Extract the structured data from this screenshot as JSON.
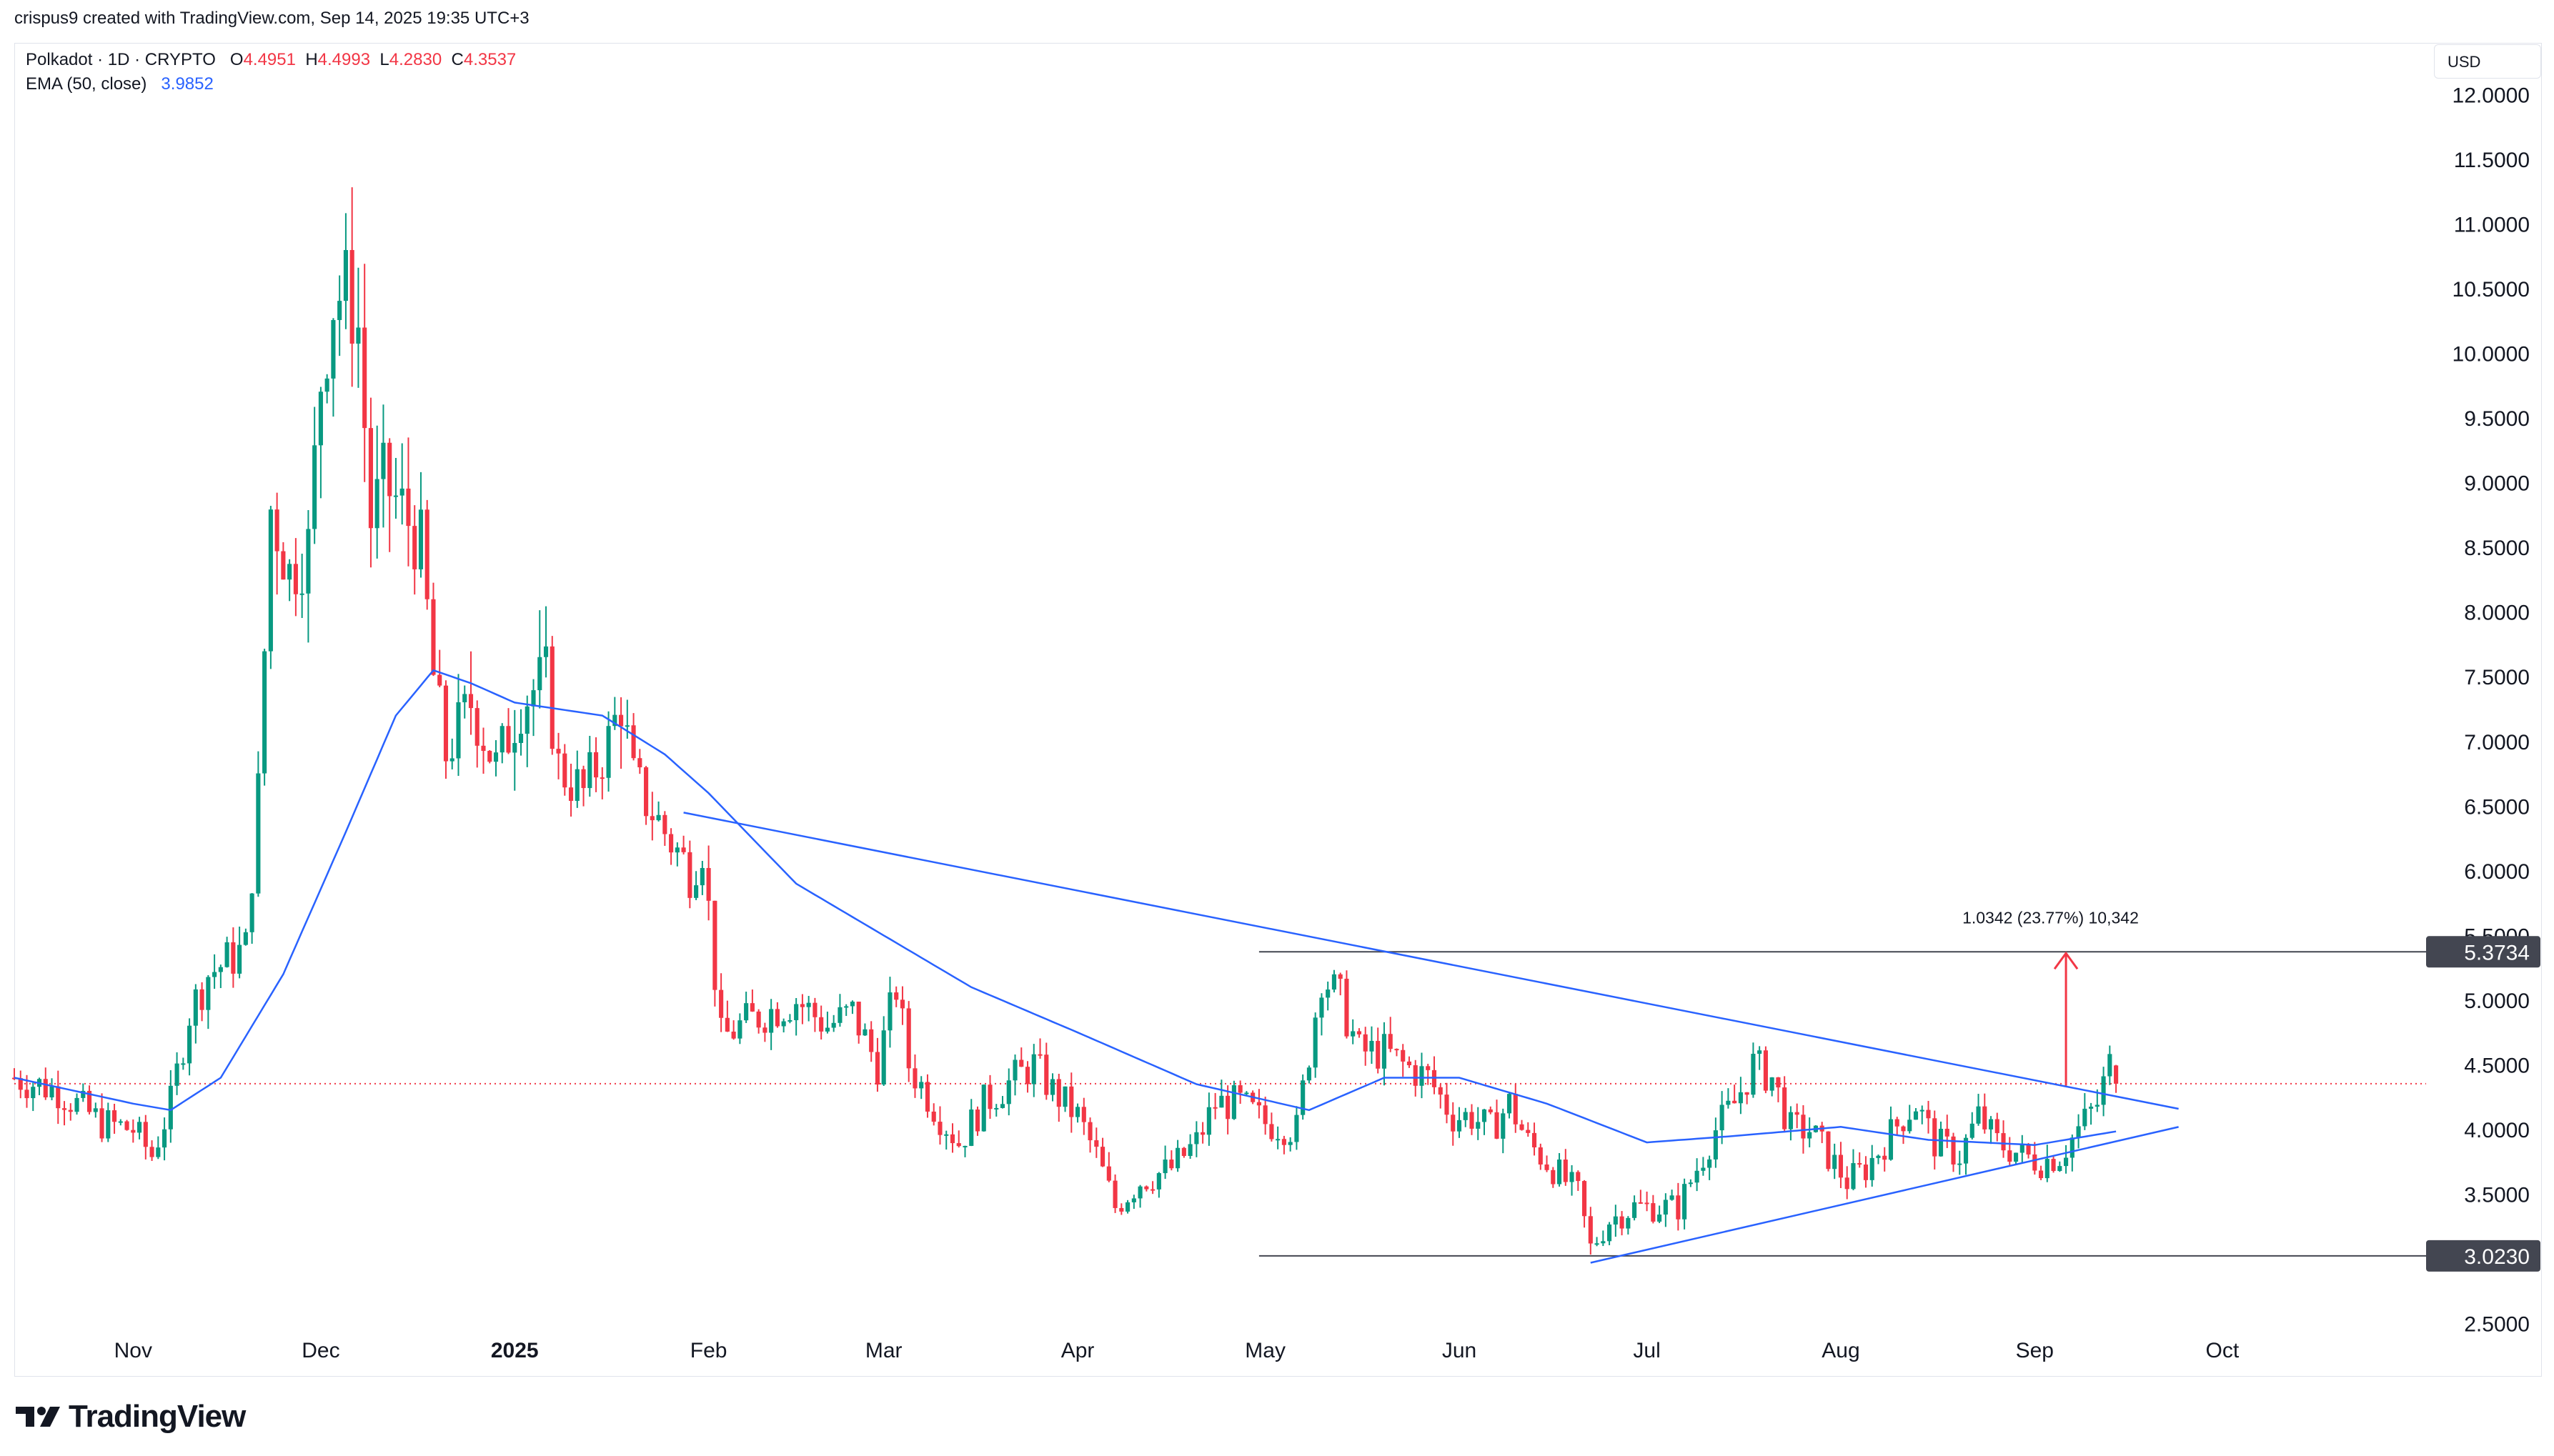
{
  "header": {
    "attribution": "crispus9 created with TradingView.com, Sep 14, 2025 19:35 UTC+3"
  },
  "legend": {
    "symbol": "Polkadot · 1D · CRYPTO",
    "o_label": "O",
    "o": "4.4951",
    "h_label": "H",
    "h": "4.4993",
    "l_label": "L",
    "l": "4.2830",
    "c_label": "C",
    "c": "4.3537",
    "ema_label": "EMA (50, close)",
    "ema_value": "3.9852"
  },
  "currency": "USD",
  "brand": "TradingView",
  "colors": {
    "up": "#089981",
    "down": "#f23645",
    "ema": "#2962ff",
    "trendline": "#2962ff",
    "level": "#434651",
    "arrow": "#f23645",
    "current_price_line": "#f23645"
  },
  "chart_data": {
    "type": "candlestick",
    "symbol": "Polkadot",
    "interval": "1D",
    "y_axis": {
      "ticks": [
        "12.0000",
        "11.5000",
        "11.0000",
        "10.5000",
        "10.0000",
        "9.5000",
        "9.0000",
        "8.5000",
        "8.0000",
        "7.5000",
        "7.0000",
        "6.5000",
        "6.0000",
        "5.5000",
        "5.0000",
        "4.5000",
        "4.0000",
        "3.5000",
        "2.5000"
      ],
      "range": [
        2.1,
        12.4
      ],
      "position": "right"
    },
    "x_axis": {
      "ticks": [
        {
          "label": "Nov",
          "date": "2024-11-01",
          "bold": false
        },
        {
          "label": "Dec",
          "date": "2024-12-01",
          "bold": false
        },
        {
          "label": "2025",
          "date": "2025-01-01",
          "bold": true
        },
        {
          "label": "Feb",
          "date": "2025-02-01",
          "bold": false
        },
        {
          "label": "Mar",
          "date": "2025-03-01",
          "bold": false
        },
        {
          "label": "Apr",
          "date": "2025-04-01",
          "bold": false
        },
        {
          "label": "May",
          "date": "2025-05-01",
          "bold": false
        },
        {
          "label": "Jun",
          "date": "2025-06-01",
          "bold": false
        },
        {
          "label": "Jul",
          "date": "2025-07-01",
          "bold": false
        },
        {
          "label": "Aug",
          "date": "2025-08-01",
          "bold": false
        },
        {
          "label": "Sep",
          "date": "2025-09-01",
          "bold": false
        },
        {
          "label": "Oct",
          "date": "2025-10-01",
          "bold": false
        }
      ],
      "range": [
        "2024-10-13",
        "2025-11-02"
      ]
    },
    "close_anchors": [
      [
        "2024-10-13",
        4.4
      ],
      [
        "2024-10-20",
        4.3
      ],
      [
        "2024-10-27",
        4.05
      ],
      [
        "2024-11-01",
        4.0
      ],
      [
        "2024-11-04",
        3.8
      ],
      [
        "2024-11-07",
        4.2
      ],
      [
        "2024-11-10",
        4.9
      ],
      [
        "2024-11-13",
        5.2
      ],
      [
        "2024-11-16",
        5.3
      ],
      [
        "2024-11-19",
        5.4
      ],
      [
        "2024-11-21",
        6.6
      ],
      [
        "2024-11-23",
        8.8
      ],
      [
        "2024-11-26",
        8.3
      ],
      [
        "2024-11-29",
        8.5
      ],
      [
        "2024-12-01",
        9.8
      ],
      [
        "2024-12-03",
        10.4
      ],
      [
        "2024-12-05",
        10.5
      ],
      [
        "2024-12-07",
        10.2
      ],
      [
        "2024-12-09",
        8.7
      ],
      [
        "2024-12-11",
        9.0
      ],
      [
        "2024-12-14",
        8.8
      ],
      [
        "2024-12-17",
        8.5
      ],
      [
        "2024-12-19",
        7.5
      ],
      [
        "2024-12-21",
        6.9
      ],
      [
        "2024-12-25",
        7.3
      ],
      [
        "2024-12-29",
        6.8
      ],
      [
        "2025-01-02",
        7.3
      ],
      [
        "2025-01-06",
        7.5
      ],
      [
        "2025-01-08",
        6.8
      ],
      [
        "2025-01-12",
        6.6
      ],
      [
        "2025-01-16",
        7.0
      ],
      [
        "2025-01-18",
        7.3
      ],
      [
        "2025-01-20",
        6.7
      ],
      [
        "2025-01-25",
        6.3
      ],
      [
        "2025-01-29",
        6.0
      ],
      [
        "2025-01-31",
        6.2
      ],
      [
        "2025-02-03",
        4.7
      ],
      [
        "2025-02-06",
        4.8
      ],
      [
        "2025-02-10",
        4.9
      ],
      [
        "2025-02-15",
        5.0
      ],
      [
        "2025-02-20",
        4.8
      ],
      [
        "2025-02-24",
        4.9
      ],
      [
        "2025-02-28",
        4.5
      ],
      [
        "2025-03-03",
        5.1
      ],
      [
        "2025-03-05",
        4.5
      ],
      [
        "2025-03-10",
        4.1
      ],
      [
        "2025-03-13",
        3.9
      ],
      [
        "2025-03-17",
        4.2
      ],
      [
        "2025-03-22",
        4.4
      ],
      [
        "2025-03-25",
        4.5
      ],
      [
        "2025-03-28",
        4.3
      ],
      [
        "2025-04-01",
        4.1
      ],
      [
        "2025-04-04",
        3.8
      ],
      [
        "2025-04-07",
        3.4
      ],
      [
        "2025-04-11",
        3.6
      ],
      [
        "2025-04-16",
        3.7
      ],
      [
        "2025-04-20",
        3.9
      ],
      [
        "2025-04-23",
        4.2
      ],
      [
        "2025-04-27",
        4.2
      ],
      [
        "2025-05-01",
        4.05
      ],
      [
        "2025-05-06",
        4.0
      ],
      [
        "2025-05-08",
        4.6
      ],
      [
        "2025-05-10",
        5.2
      ],
      [
        "2025-05-13",
        5.0
      ],
      [
        "2025-05-16",
        4.6
      ],
      [
        "2025-05-20",
        4.6
      ],
      [
        "2025-05-23",
        4.5
      ],
      [
        "2025-05-27",
        4.4
      ],
      [
        "2025-05-31",
        4.1
      ],
      [
        "2025-06-03",
        4.1
      ],
      [
        "2025-06-06",
        4.0
      ],
      [
        "2025-06-09",
        4.2
      ],
      [
        "2025-06-12",
        3.9
      ],
      [
        "2025-06-16",
        3.7
      ],
      [
        "2025-06-20",
        3.5
      ],
      [
        "2025-06-22",
        3.08
      ],
      [
        "2025-06-25",
        3.3
      ],
      [
        "2025-06-29",
        3.4
      ],
      [
        "2025-07-03",
        3.4
      ],
      [
        "2025-07-06",
        3.4
      ],
      [
        "2025-07-09",
        3.7
      ],
      [
        "2025-07-12",
        4.0
      ],
      [
        "2025-07-15",
        4.2
      ],
      [
        "2025-07-18",
        4.5
      ],
      [
        "2025-07-21",
        4.4
      ],
      [
        "2025-07-24",
        4.0
      ],
      [
        "2025-07-27",
        4.0
      ],
      [
        "2025-07-30",
        3.8
      ],
      [
        "2025-08-02",
        3.6
      ],
      [
        "2025-08-05",
        3.7
      ],
      [
        "2025-08-08",
        3.9
      ],
      [
        "2025-08-11",
        4.1
      ],
      [
        "2025-08-13",
        4.2
      ],
      [
        "2025-08-16",
        3.9
      ],
      [
        "2025-08-20",
        3.8
      ],
      [
        "2025-08-23",
        4.1
      ],
      [
        "2025-08-26",
        3.9
      ],
      [
        "2025-08-30",
        3.8
      ],
      [
        "2025-09-02",
        3.75
      ],
      [
        "2025-09-05",
        3.8
      ],
      [
        "2025-09-08",
        4.0
      ],
      [
        "2025-09-11",
        4.2
      ],
      [
        "2025-09-13",
        4.5
      ],
      [
        "2025-09-14",
        4.3537
      ]
    ],
    "ema": {
      "label": "EMA (50, close)",
      "last": 3.9852,
      "anchors": [
        [
          "2024-10-13",
          4.4
        ],
        [
          "2024-11-01",
          4.2
        ],
        [
          "2024-11-07",
          4.15
        ],
        [
          "2024-11-15",
          4.4
        ],
        [
          "2024-11-25",
          5.2
        ],
        [
          "2024-12-05",
          6.3
        ],
        [
          "2024-12-13",
          7.2
        ],
        [
          "2024-12-19",
          7.55
        ],
        [
          "2024-12-25",
          7.45
        ],
        [
          "2025-01-01",
          7.3
        ],
        [
          "2025-01-15",
          7.2
        ],
        [
          "2025-01-25",
          6.9
        ],
        [
          "2025-02-01",
          6.6
        ],
        [
          "2025-02-15",
          5.9
        ],
        [
          "2025-03-01",
          5.5
        ],
        [
          "2025-03-15",
          5.1
        ],
        [
          "2025-04-01",
          4.75
        ],
        [
          "2025-04-20",
          4.35
        ],
        [
          "2025-05-08",
          4.15
        ],
        [
          "2025-05-20",
          4.4
        ],
        [
          "2025-06-01",
          4.4
        ],
        [
          "2025-06-15",
          4.2
        ],
        [
          "2025-07-01",
          3.9
        ],
        [
          "2025-07-15",
          3.95
        ],
        [
          "2025-08-01",
          4.02
        ],
        [
          "2025-08-15",
          3.92
        ],
        [
          "2025-09-01",
          3.88
        ],
        [
          "2025-09-14",
          3.9852
        ]
      ]
    },
    "trendlines": [
      {
        "from": [
          "2025-01-28",
          6.45
        ],
        "to": [
          "2025-09-24",
          4.16
        ]
      },
      {
        "from": [
          "2025-06-22",
          2.97
        ],
        "to": [
          "2025-09-24",
          4.02
        ]
      }
    ],
    "levels": [
      {
        "value": 5.3734,
        "label": "5.3734",
        "from": "2025-04-30"
      },
      {
        "value": 3.023,
        "label": "3.0230",
        "from": "2025-04-30"
      }
    ],
    "current_price": 4.3537,
    "measure": {
      "date": "2025-09-06",
      "from": 4.3392,
      "to": 5.3734,
      "label": "1.0342 (23.77%) 10,342"
    },
    "last_bar": {
      "open": 4.4951,
      "high": 4.4993,
      "low": 4.283,
      "close": 4.3537
    }
  }
}
